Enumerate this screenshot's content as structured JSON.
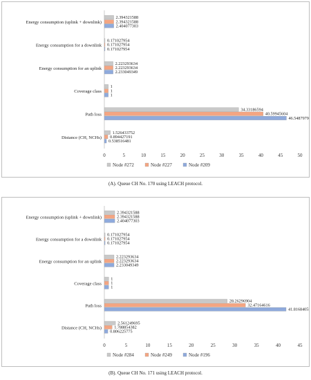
{
  "chart_data": [
    {
      "type": "bar",
      "orientation": "horizontal",
      "categories": [
        "Energy consumption (uplink + downlink)",
        "Energy consumption for a downlink",
        "Energy consumption for an uplink",
        "Coverage class",
        "Path loss",
        "Distance (CH, NCHs)"
      ],
      "series": [
        {
          "name": "Node #272",
          "color": "#c9c9c9",
          "values": [
            2.394321588,
            0.171027954,
            2.223293634,
            1,
            34.33186594,
            1.526433752
          ],
          "labels": [
            "2.394321588",
            "0.171027954",
            "2.223293634",
            "1",
            "34.33186594",
            "1.526433752"
          ]
        },
        {
          "name": "Node #227",
          "color": "#f4a582",
          "values": [
            2.394321588,
            0.171027954,
            2.223293634,
            1,
            40.59945604,
            0.894427191
          ],
          "labels": [
            "2.394321588",
            "0.171027954",
            "2.223293634",
            "1",
            "40.59945604",
            "0.894427191"
          ]
        },
        {
          "name": "Node #209",
          "color": "#8faadc",
          "values": [
            2.404077303,
            0.171027954,
            2.233049349,
            1,
            46.5487979,
            0.538516481
          ],
          "labels": [
            "2.404077303",
            "0.171027954",
            "2.233049349",
            "1",
            "46.5487979",
            "0.538516481"
          ]
        }
      ],
      "xlim": [
        0,
        50
      ],
      "xticks": [
        "0",
        "5",
        "10",
        "15",
        "20",
        "25",
        "30",
        "35",
        "40",
        "45",
        "50"
      ],
      "legend_position": "bottom",
      "caption": "(A). Queue CH No. 170 using LEACH protocol."
    },
    {
      "type": "bar",
      "orientation": "horizontal",
      "categories": [
        "Energy consumption (uplink + downlink)",
        "Energy consumption for a downlink",
        "Energy consumption for an uplink",
        "Coverage class",
        "Path loss",
        "Distance (CH, NCHs)"
      ],
      "series": [
        {
          "name": "Node #284",
          "color": "#c9c9c9",
          "values": [
            2.394321588,
            0.171027954,
            2.223293634,
            1,
            28.26296904,
            2.561249695
          ],
          "labels": [
            "2.394321588",
            "0.171027954",
            "2.223293634",
            "1",
            "28.26296904",
            "2.561249695"
          ]
        },
        {
          "name": "Node #249",
          "color": "#f4a582",
          "values": [
            2.394321588,
            0.171027954,
            2.223293634,
            1,
            32.47164616,
            1.788854382
          ],
          "labels": [
            "2.394321588",
            "0.171027954",
            "2.223293634",
            "1",
            "32.47164616",
            "1.788854382"
          ]
        },
        {
          "name": "Node #196",
          "color": "#8faadc",
          "values": [
            2.404077303,
            0.171027954,
            2.233049349,
            1,
            41.81684055,
            0.806225775
          ],
          "labels": [
            "2.404077303",
            "0.171027954",
            "2.233049349",
            "1",
            "41.81684055",
            "0.806225775"
          ]
        }
      ],
      "xlim": [
        0,
        45
      ],
      "xticks": [
        "0",
        "5",
        "10",
        "15",
        "20",
        "25",
        "30",
        "35",
        "40",
        "45"
      ],
      "legend_position": "bottom",
      "caption": "(B). Queue CH No. 171 using LEACH protocol."
    }
  ]
}
